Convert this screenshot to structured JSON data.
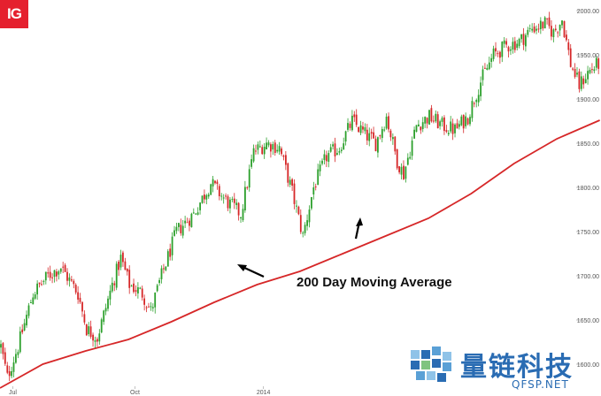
{
  "brand": {
    "logo_text": "IG",
    "logo_color": "#e5202e"
  },
  "watermark": {
    "main_text": "量链科技",
    "sub_text": "QFSP.NET",
    "color": "#2a6cb3"
  },
  "chart_data": {
    "type": "candlestick",
    "title": "",
    "xlabel": "",
    "ylabel": "",
    "ylim": [
      1577,
      2005
    ],
    "y_ticks": [
      1600,
      1650,
      1700,
      1750,
      1800,
      1850,
      1900,
      1950,
      2000
    ],
    "y_tick_labels": [
      "1600.00",
      "1650.00",
      "1700.00",
      "1750.00",
      "1800.00",
      "1850.00",
      "1900.00",
      "1950.00",
      "2000.00"
    ],
    "x_ticks": [
      {
        "label": "Jul",
        "bar_index": 6
      },
      {
        "label": "Oct",
        "bar_index": 63
      },
      {
        "label": "2014",
        "bar_index": 123
      }
    ],
    "grid": false,
    "up_color": "#2ca02c",
    "down_color": "#d62728",
    "series": [
      {
        "name": "200 Day Moving Average",
        "color": "#d62728",
        "points": [
          [
            0,
            1573
          ],
          [
            20,
            1600
          ],
          [
            40,
            1615
          ],
          [
            60,
            1628
          ],
          [
            80,
            1648
          ],
          [
            100,
            1670
          ],
          [
            120,
            1690
          ],
          [
            140,
            1705
          ],
          [
            160,
            1725
          ],
          [
            180,
            1745
          ],
          [
            200,
            1765
          ],
          [
            220,
            1793
          ],
          [
            240,
            1827
          ],
          [
            260,
            1855
          ],
          [
            280,
            1876
          ]
        ]
      }
    ],
    "price_path": [
      [
        0,
        1620
      ],
      [
        3,
        1585
      ],
      [
        8,
        1620
      ],
      [
        15,
        1680
      ],
      [
        22,
        1700
      ],
      [
        28,
        1710
      ],
      [
        32,
        1695
      ],
      [
        36,
        1680
      ],
      [
        40,
        1640
      ],
      [
        45,
        1630
      ],
      [
        52,
        1690
      ],
      [
        56,
        1720
      ],
      [
        60,
        1690
      ],
      [
        66,
        1680
      ],
      [
        70,
        1660
      ],
      [
        75,
        1700
      ],
      [
        82,
        1750
      ],
      [
        90,
        1770
      ],
      [
        98,
        1805
      ],
      [
        105,
        1785
      ],
      [
        112,
        1770
      ],
      [
        118,
        1840
      ],
      [
        124,
        1850
      ],
      [
        130,
        1845
      ],
      [
        136,
        1795
      ],
      [
        141,
        1745
      ],
      [
        146,
        1800
      ],
      [
        152,
        1835
      ],
      [
        158,
        1845
      ],
      [
        164,
        1875
      ],
      [
        170,
        1860
      ],
      [
        175,
        1850
      ],
      [
        180,
        1880
      ],
      [
        185,
        1830
      ],
      [
        188,
        1815
      ],
      [
        194,
        1870
      ],
      [
        200,
        1880
      ],
      [
        206,
        1870
      ],
      [
        212,
        1865
      ],
      [
        218,
        1880
      ],
      [
        224,
        1920
      ],
      [
        230,
        1950
      ],
      [
        236,
        1960
      ],
      [
        242,
        1965
      ],
      [
        248,
        1980
      ],
      [
        254,
        1985
      ],
      [
        258,
        1975
      ],
      [
        262,
        1990
      ],
      [
        266,
        1940
      ],
      [
        270,
        1915
      ],
      [
        274,
        1930
      ],
      [
        279,
        1940
      ]
    ],
    "annotations": [
      {
        "text": "200 Day Moving Average"
      }
    ]
  }
}
